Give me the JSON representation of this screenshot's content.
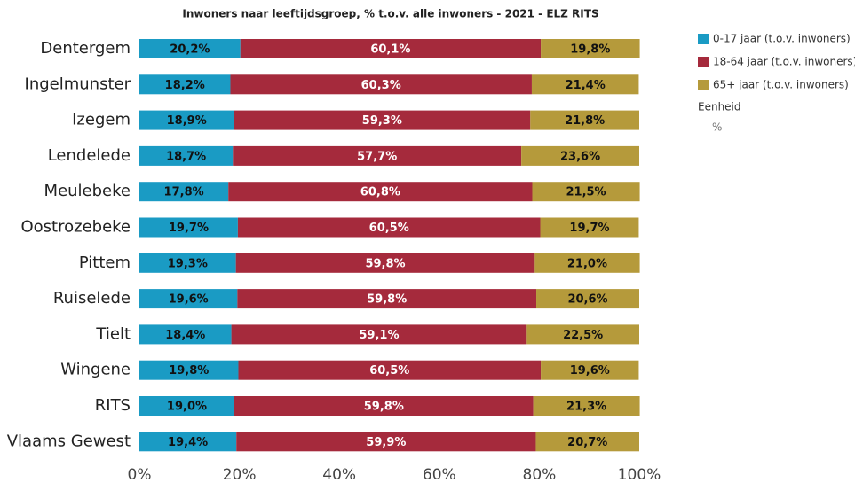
{
  "chart_data": {
    "type": "bar",
    "orientation": "horizontal",
    "stacked": true,
    "title": "Inwoners naar leeftijdsgroep, % t.o.v. alle inwoners - 2021 - ELZ RITS",
    "categories": [
      "Dentergem",
      "Ingelmunster",
      "Izegem",
      "Lendelede",
      "Meulebeke",
      "Oostrozebeke",
      "Pittem",
      "Ruiselede",
      "Tielt",
      "Wingene",
      "RITS",
      "Vlaams Gewest"
    ],
    "series": [
      {
        "name": "0-17 jaar (t.o.v. inwoners)",
        "color": "#1a9bc4",
        "values": [
          20.2,
          18.2,
          18.9,
          18.7,
          17.8,
          19.7,
          19.3,
          19.6,
          18.4,
          19.8,
          19.0,
          19.4
        ],
        "value_labels": [
          "20,2%",
          "18,2%",
          "18,9%",
          "18,7%",
          "17,8%",
          "19,7%",
          "19,3%",
          "19,6%",
          "18,4%",
          "19,8%",
          "19,0%",
          "19,4%"
        ]
      },
      {
        "name": "18-64 jaar (t.o.v. inwoners)",
        "color": "#a52a3c",
        "values": [
          60.1,
          60.3,
          59.3,
          57.7,
          60.8,
          60.5,
          59.8,
          59.8,
          59.1,
          60.5,
          59.8,
          59.9
        ],
        "value_labels": [
          "60,1%",
          "60,3%",
          "59,3%",
          "57,7%",
          "60,8%",
          "60,5%",
          "59,8%",
          "59,8%",
          "59,1%",
          "60,5%",
          "59,8%",
          "59,9%"
        ]
      },
      {
        "name": "65+ jaar (t.o.v. inwoners)",
        "color": "#b59a3b",
        "values": [
          19.8,
          21.4,
          21.8,
          23.6,
          21.5,
          19.7,
          21.0,
          20.6,
          22.5,
          19.6,
          21.3,
          20.7
        ],
        "value_labels": [
          "19,8%",
          "21,4%",
          "21,8%",
          "23,6%",
          "21,5%",
          "19,7%",
          "21,0%",
          "20,6%",
          "22,5%",
          "19,6%",
          "21,3%",
          "20,7%"
        ]
      }
    ],
    "xlim": [
      0,
      100
    ],
    "xticks": [
      {
        "value": 0,
        "label": "0%"
      },
      {
        "value": 20,
        "label": "20%"
      },
      {
        "value": 40,
        "label": "40%"
      },
      {
        "value": 60,
        "label": "60%"
      },
      {
        "value": 80,
        "label": "80%"
      },
      {
        "value": 100,
        "label": "100%"
      }
    ],
    "legend": "right",
    "unit_title": "Eenheid",
    "unit": "%"
  }
}
